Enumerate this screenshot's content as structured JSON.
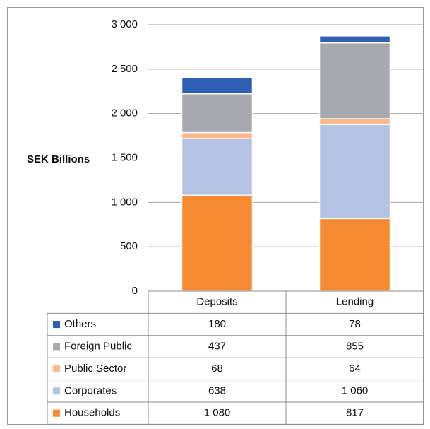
{
  "chart_data": {
    "type": "stacked_bar",
    "y_axis_label": "SEK Billions",
    "categories": [
      "Deposits",
      "Lending"
    ],
    "series": [
      {
        "name": "Households",
        "color": "#f58a31",
        "values": [
          1080,
          817
        ],
        "value_labels": [
          "1 080",
          "817"
        ]
      },
      {
        "name": "Corporates",
        "color": "#b4c3e4",
        "values": [
          638,
          1060
        ],
        "value_labels": [
          "638",
          "1 060"
        ]
      },
      {
        "name": "Public Sector",
        "color": "#f9b98b",
        "values": [
          68,
          64
        ]
      },
      {
        "name": "Foreign Public",
        "color": "#a7a9ae",
        "values": [
          437,
          855
        ]
      },
      {
        "name": "Others",
        "color": "#2d5fb4",
        "values": [
          180,
          78
        ]
      }
    ],
    "ylim": [
      0,
      3000
    ],
    "yticks": [
      0,
      500,
      {
        "value": 1000,
        "label": "1 000"
      },
      {
        "value": 1500,
        "label": "1 500"
      },
      {
        "value": 2000,
        "label": "2 000"
      },
      {
        "value": 2500,
        "label": "2 500"
      },
      {
        "value": 3000,
        "label": "3 000"
      }
    ],
    "grid": true
  }
}
